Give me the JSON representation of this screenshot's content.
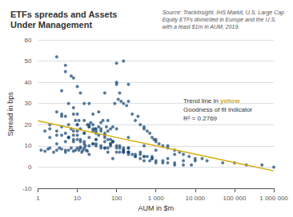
{
  "chart_data": {
    "type": "scatter",
    "title": "ETFs spreads and Assets\nUnder Management",
    "subtitle": "Source: TrackInsight, IHS Markit, U.S. Large Cap\nEquity ETFs domiciled in Europe and the U.S.\nwith a least $1m in AUM, 2019.",
    "xlabel": "AUM in $m",
    "ylabel": "Spread in bps",
    "log": "x",
    "grid": "y",
    "xlim": [
      1,
      1000000
    ],
    "xticks": [
      1,
      10,
      100,
      {
        "value": 1000,
        "label": "1 000"
      },
      {
        "value": 10000,
        "label": "10 000"
      },
      {
        "value": 100000,
        "label": "100 000"
      },
      {
        "value": 1000000,
        "label": "1 000 000"
      }
    ],
    "ylim": [
      -10,
      60
    ],
    "yticks": [
      -10,
      0,
      10,
      20,
      30,
      40,
      50,
      60
    ],
    "annotations": [
      [
        {
          "text": "Trend line in "
        },
        {
          "text": "yellow",
          "color": "#d4ac0d"
        }
      ],
      [
        {
          "text": "Goodness of fit indicator"
        }
      ],
      [
        {
          "text": "R² = 0.2769"
        }
      ]
    ],
    "series": [
      {
        "type": "scatter",
        "color": "#1f4e79",
        "x": [
          1.2,
          1.5,
          1.8,
          2.0,
          2.5,
          3,
          3.5,
          4,
          5,
          6,
          7,
          8,
          9,
          10,
          10,
          11,
          12,
          13,
          14,
          15,
          16,
          17,
          18,
          20,
          22,
          25,
          28,
          30,
          35,
          40,
          45,
          50,
          50,
          55,
          60,
          70,
          80,
          90,
          100,
          100,
          100,
          110,
          120,
          130,
          150,
          150,
          180,
          200,
          200,
          250,
          300,
          350,
          400,
          500,
          500,
          600,
          700,
          800,
          900,
          1000,
          1000,
          1200,
          1500,
          2000,
          2000,
          3000,
          4000,
          5000,
          7000,
          10000,
          10000,
          15000,
          20000,
          50000,
          100000,
          200000,
          500000,
          1000000,
          3,
          4,
          5,
          6,
          7,
          8,
          9,
          10,
          11,
          12,
          15,
          18,
          20,
          25,
          30,
          35,
          40,
          50,
          60,
          70,
          80,
          100,
          120,
          150,
          200,
          250,
          300,
          400,
          500,
          700,
          1000,
          1500,
          2000,
          3000,
          5000,
          8000,
          2,
          3,
          4,
          5,
          6,
          8,
          10,
          12,
          15,
          20,
          25,
          30,
          40,
          50,
          70,
          100,
          150,
          200,
          300,
          500,
          800,
          1500,
          3000,
          4,
          6,
          8,
          10,
          15,
          20,
          30,
          50,
          80,
          120,
          200,
          400,
          800,
          2000,
          5000,
          5,
          8,
          12,
          20,
          35,
          60,
          100,
          200,
          500,
          1000,
          3000,
          3,
          5,
          7,
          10,
          15,
          25,
          40,
          80,
          150,
          400,
          2,
          4,
          8,
          15,
          30,
          70,
          200,
          600,
          3,
          6,
          12,
          25,
          60,
          150,
          500,
          4,
          10,
          25,
          70,
          200,
          5,
          15,
          50,
          200,
          8,
          30,
          120,
          10,
          50,
          20,
          100,
          5,
          20,
          80,
          3,
          12,
          60,
          300,
          2,
          8,
          40,
          200,
          1000,
          1.5,
          6,
          30,
          150,
          800
        ],
        "values": [
          8,
          7.5,
          8.5,
          9,
          7,
          8,
          9,
          8.5,
          7,
          8,
          9,
          7.5,
          8,
          9,
          17,
          8,
          9.5,
          7,
          8,
          9,
          10,
          8,
          7.5,
          19,
          21,
          20,
          18,
          17,
          19,
          21,
          22,
          35,
          16,
          19,
          17,
          18,
          19,
          30,
          40,
          39,
          49,
          32,
          35,
          31,
          30,
          50,
          29,
          31,
          39,
          25,
          22,
          24,
          20,
          18,
          19,
          17,
          16,
          14,
          13,
          12,
          13,
          11,
          10,
          9,
          10,
          8,
          7,
          6,
          5,
          4,
          3,
          4,
          3,
          2,
          2,
          1,
          1,
          0,
          26,
          25,
          24,
          20,
          18,
          25,
          22,
          20,
          22,
          18,
          16,
          20,
          19,
          18,
          16,
          15,
          17,
          14,
          13,
          11,
          12,
          10,
          9,
          8,
          7,
          6,
          5,
          4,
          3,
          3,
          2,
          2,
          2,
          1,
          1,
          1,
          18,
          17,
          15,
          16,
          14,
          13,
          15,
          13,
          12,
          14,
          11,
          13,
          10,
          12,
          11,
          9,
          8,
          7,
          6,
          5,
          4,
          3,
          2,
          36,
          30,
          28,
          25,
          22,
          20,
          18,
          15,
          12,
          10,
          9,
          7,
          5,
          4,
          3,
          45,
          42,
          35,
          30,
          26,
          22,
          18,
          14,
          10,
          8,
          6,
          52,
          48,
          43,
          38,
          30,
          25,
          18,
          12,
          9,
          6,
          20,
          19,
          17,
          16,
          13,
          10,
          7,
          5,
          15,
          14,
          12,
          11,
          9,
          7,
          5,
          24,
          20,
          17,
          13,
          9,
          12,
          11,
          9,
          7,
          15,
          11,
          7,
          13,
          9,
          10,
          7,
          8,
          6,
          4,
          11,
          9,
          7,
          5,
          14,
          12,
          9,
          6,
          3,
          17,
          14,
          10,
          7,
          4
        ]
      },
      {
        "type": "line",
        "color": "#d4ac0d",
        "x": [
          1,
          10,
          100,
          1000,
          10000,
          100000,
          1000000
        ],
        "values": [
          21.8033,
          17.8746,
          13.9459,
          10.0172,
          6.0885,
          2.1598,
          -1.7689
        ]
      }
    ]
  }
}
